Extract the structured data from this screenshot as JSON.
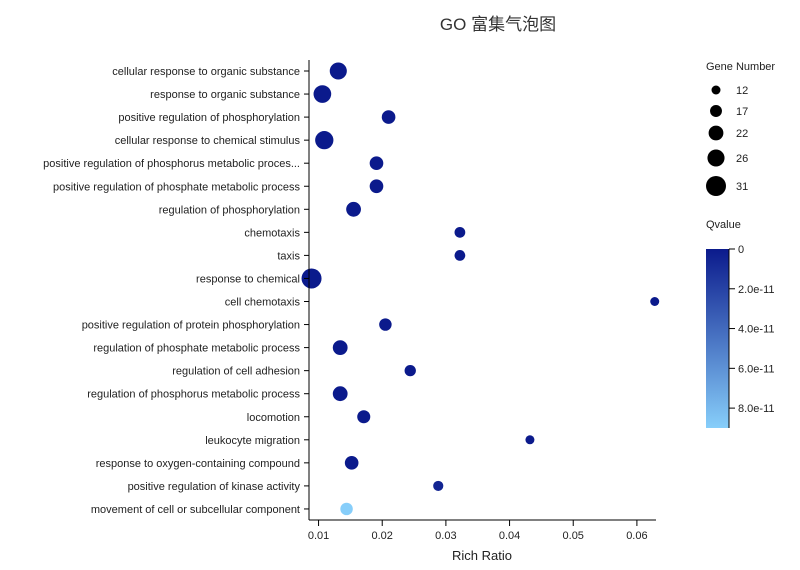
{
  "chart_data": {
    "type": "scatter",
    "title": "GO 富集气泡图",
    "xlabel": "Rich Ratio",
    "xlim": [
      0.0085,
      0.063
    ],
    "xticks": [
      0.01,
      0.02,
      0.03,
      0.04,
      0.05,
      0.06
    ],
    "xtick_labels": [
      "0.01",
      "0.02",
      "0.03",
      "0.04",
      "0.05",
      "0.06"
    ],
    "grid": false,
    "categories": [
      "cellular response to organic substance",
      "response to organic substance",
      "positive regulation of phosphorylation",
      "cellular response to chemical stimulus",
      "positive regulation of phosphorus metabolic proces...",
      "positive regulation of phosphate metabolic process",
      "regulation of phosphorylation",
      "chemotaxis",
      "taxis",
      "response to chemical",
      "cell chemotaxis",
      "positive regulation of protein phosphorylation",
      "regulation of phosphate metabolic process",
      "regulation of cell adhesion",
      "regulation of phosphorus metabolic process",
      "locomotion",
      "leukocyte migration",
      "response to oxygen-containing compound",
      "positive regulation of kinase activity",
      "movement of cell or subcellular component"
    ],
    "points": [
      {
        "term": "cellular response to organic substance",
        "rich_ratio": 0.0131,
        "gene_number": 26,
        "qvalue": 0
      },
      {
        "term": "response to organic substance",
        "rich_ratio": 0.0106,
        "gene_number": 27,
        "qvalue": 0
      },
      {
        "term": "positive regulation of phosphorylation",
        "rich_ratio": 0.021,
        "gene_number": 20,
        "qvalue": 0
      },
      {
        "term": "cellular response to chemical stimulus",
        "rich_ratio": 0.0109,
        "gene_number": 28,
        "qvalue": 0
      },
      {
        "term": "positive regulation of phosphorus metabolic proces...",
        "rich_ratio": 0.0191,
        "gene_number": 20,
        "qvalue": 0
      },
      {
        "term": "positive regulation of phosphate metabolic process",
        "rich_ratio": 0.0191,
        "gene_number": 20,
        "qvalue": 0
      },
      {
        "term": "regulation of phosphorylation",
        "rich_ratio": 0.0155,
        "gene_number": 22,
        "qvalue": 0
      },
      {
        "term": "chemotaxis",
        "rich_ratio": 0.0322,
        "gene_number": 15,
        "qvalue": 0
      },
      {
        "term": "taxis",
        "rich_ratio": 0.0322,
        "gene_number": 15,
        "qvalue": 0
      },
      {
        "term": "response to chemical",
        "rich_ratio": 0.0089,
        "gene_number": 31,
        "qvalue": 0
      },
      {
        "term": "cell chemotaxis",
        "rich_ratio": 0.0628,
        "gene_number": 12,
        "qvalue": 0
      },
      {
        "term": "positive regulation of protein phosphorylation",
        "rich_ratio": 0.0205,
        "gene_number": 18,
        "qvalue": 0
      },
      {
        "term": "regulation of phosphate metabolic process",
        "rich_ratio": 0.0134,
        "gene_number": 22,
        "qvalue": 0
      },
      {
        "term": "regulation of cell adhesion",
        "rich_ratio": 0.0244,
        "gene_number": 16,
        "qvalue": 0
      },
      {
        "term": "regulation of phosphorus metabolic process",
        "rich_ratio": 0.0134,
        "gene_number": 22,
        "qvalue": 0
      },
      {
        "term": "locomotion",
        "rich_ratio": 0.0171,
        "gene_number": 19,
        "qvalue": 0
      },
      {
        "term": "leukocyte migration",
        "rich_ratio": 0.0432,
        "gene_number": 12,
        "qvalue": 0
      },
      {
        "term": "response to oxygen-containing compound",
        "rich_ratio": 0.0152,
        "gene_number": 20,
        "qvalue": 0
      },
      {
        "term": "positive regulation of kinase activity",
        "rich_ratio": 0.0288,
        "gene_number": 14,
        "qvalue": 5e-12
      },
      {
        "term": "movement of cell or subcellular component",
        "rich_ratio": 0.0144,
        "gene_number": 18,
        "qvalue": 9e-11
      }
    ],
    "size_legend": {
      "title": "Gene Number",
      "values": [
        12,
        17,
        22,
        26,
        31
      ]
    },
    "color_legend": {
      "title": "Qvalue",
      "range": [
        0,
        9e-11
      ],
      "ticks": [
        0,
        2e-11,
        4e-11,
        6e-11,
        8e-11
      ],
      "tick_labels": [
        "0",
        "2.0e-11",
        "4.0e-11",
        "6.0e-11",
        "8.0e-11"
      ],
      "color_low": "#0b1a8c",
      "color_high": "#87cefa"
    },
    "legend_placement": "right"
  }
}
